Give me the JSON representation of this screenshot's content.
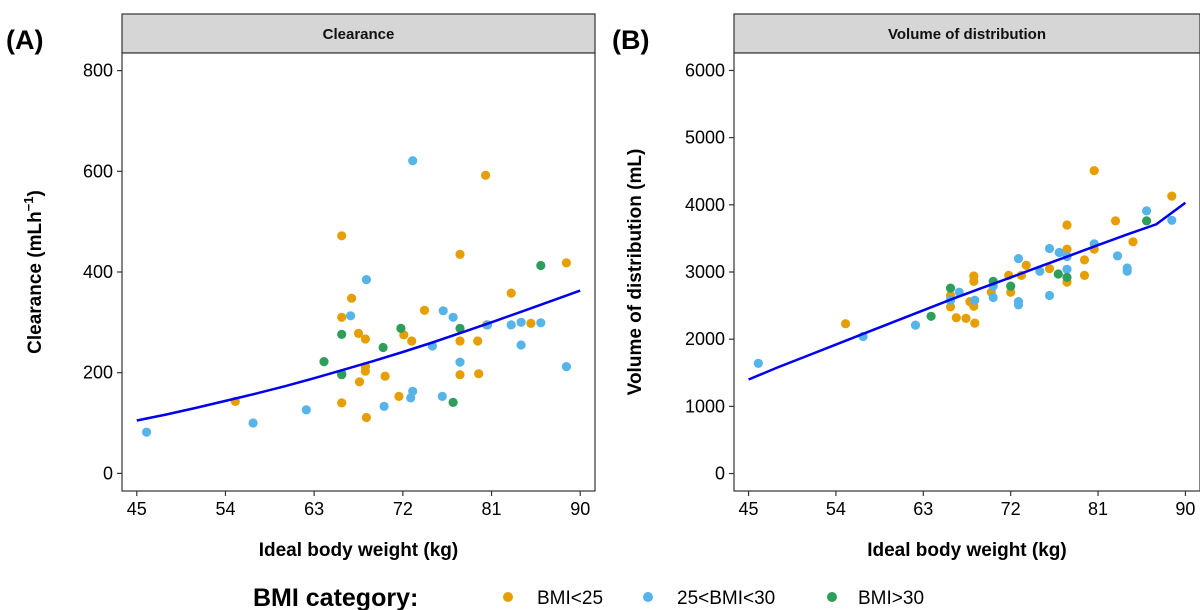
{
  "chart_data": [
    {
      "type": "scatter",
      "panel_tag": "(A)",
      "strip": "Clearance",
      "xlabel": "Ideal body weight (kg)",
      "ylabel": "Clearance (mLh",
      "ylabel_sup": "−1",
      "ylabel_end": ")",
      "xlim": [
        43.5,
        91.5
      ],
      "ylim": [
        -35,
        835
      ],
      "xticks": [
        45,
        54,
        63,
        72,
        81,
        90
      ],
      "xtick_labels": [
        "45",
        "54",
        "63",
        "72",
        "81",
        "90"
      ],
      "yticks": [
        0,
        200,
        400,
        600,
        800
      ],
      "ytick_labels": [
        "0",
        "200",
        "400",
        "600",
        "800"
      ],
      "grid": false,
      "series": [
        {
          "name": "BMI<25",
          "color": "#E69F00",
          "points": [
            [
              55.0,
              143
            ],
            [
              65.8,
              472
            ],
            [
              65.8,
              310
            ],
            [
              66.8,
              348
            ],
            [
              67.5,
              278
            ],
            [
              68.2,
              267
            ],
            [
              68.2,
              212
            ],
            [
              68.2,
              203
            ],
            [
              65.8,
              140
            ],
            [
              67.6,
              182
            ],
            [
              68.3,
              111
            ],
            [
              70.2,
              193
            ],
            [
              71.6,
              153
            ],
            [
              72.1,
              275
            ],
            [
              72.9,
              263
            ],
            [
              74.2,
              324
            ],
            [
              77.8,
              435
            ],
            [
              77.8,
              263
            ],
            [
              77.8,
              196
            ],
            [
              79.6,
              263
            ],
            [
              79.7,
              198
            ],
            [
              80.4,
              592
            ],
            [
              80.5,
              295
            ],
            [
              83.0,
              358
            ],
            [
              85.0,
              298
            ],
            [
              88.6,
              418
            ]
          ]
        },
        {
          "name": "25<BMI<30",
          "color": "#56B4E9",
          "points": [
            [
              46.0,
              82
            ],
            [
              56.8,
              100
            ],
            [
              62.2,
              126
            ],
            [
              66.7,
              313
            ],
            [
              68.3,
              385
            ],
            [
              70.1,
              133
            ],
            [
              72.8,
              150
            ],
            [
              73.0,
              163
            ],
            [
              73.0,
              621
            ],
            [
              75.0,
              253
            ],
            [
              76.0,
              153
            ],
            [
              76.1,
              323
            ],
            [
              77.1,
              310
            ],
            [
              77.8,
              221
            ],
            [
              80.6,
              295
            ],
            [
              83.0,
              295
            ],
            [
              84.0,
              300
            ],
            [
              84.0,
              255
            ],
            [
              86.0,
              299
            ],
            [
              88.6,
              212
            ]
          ]
        },
        {
          "name": "BMI>30",
          "color": "#2E9E5B",
          "points": [
            [
              64.0,
              222
            ],
            [
              65.8,
              276
            ],
            [
              65.8,
              196
            ],
            [
              65.8,
              198
            ],
            [
              70.0,
              250
            ],
            [
              71.8,
              288
            ],
            [
              77.1,
              141
            ],
            [
              77.8,
              288
            ],
            [
              86.0,
              413
            ]
          ]
        }
      ],
      "fit_line": {
        "color": "#0000EE",
        "x": [
          45,
          48,
          51,
          54,
          57,
          60,
          63,
          66,
          69,
          72,
          75,
          78,
          81,
          84,
          87,
          90
        ],
        "y": [
          105,
          117,
          130,
          144,
          158,
          173,
          189,
          206,
          223,
          241,
          260,
          280,
          300,
          321,
          342,
          363
        ]
      }
    },
    {
      "type": "scatter",
      "panel_tag": "(B)",
      "strip": "Volume of distribution",
      "xlabel": "Ideal body weight (kg)",
      "ylabel": "Volume of distribution (mL)",
      "xlim": [
        43.5,
        91.5
      ],
      "ylim": [
        -260,
        6260
      ],
      "xticks": [
        45,
        54,
        63,
        72,
        81,
        90
      ],
      "xtick_labels": [
        "45",
        "54",
        "63",
        "72",
        "81",
        "90"
      ],
      "yticks": [
        0,
        1000,
        2000,
        3000,
        4000,
        5000,
        6000
      ],
      "ytick_labels": [
        "0",
        "1000",
        "2000",
        "3000",
        "4000",
        "5000",
        "6000"
      ],
      "grid": false,
      "series": [
        {
          "name": "BMI<25",
          "color": "#E69F00",
          "points": [
            [
              55.0,
              2230
            ],
            [
              65.8,
              2650
            ],
            [
              65.8,
              2480
            ],
            [
              66.4,
              2320
            ],
            [
              67.4,
              2310
            ],
            [
              67.8,
              2560
            ],
            [
              68.2,
              2940
            ],
            [
              68.2,
              2860
            ],
            [
              68.2,
              2490
            ],
            [
              68.3,
              2240
            ],
            [
              70.0,
              2700
            ],
            [
              71.8,
              2950
            ],
            [
              72.0,
              2700
            ],
            [
              73.1,
              2950
            ],
            [
              73.6,
              3100
            ],
            [
              76.0,
              3050
            ],
            [
              77.8,
              3700
            ],
            [
              77.8,
              3340
            ],
            [
              77.8,
              3230
            ],
            [
              77.8,
              2850
            ],
            [
              79.6,
              2950
            ],
            [
              79.6,
              3180
            ],
            [
              80.6,
              4510
            ],
            [
              80.6,
              3340
            ],
            [
              82.8,
              3760
            ],
            [
              84.6,
              3450
            ],
            [
              88.6,
              4130
            ]
          ]
        },
        {
          "name": "25<BMI<30",
          "color": "#56B4E9",
          "points": [
            [
              46.0,
              1640
            ],
            [
              56.8,
              2040
            ],
            [
              62.2,
              2210
            ],
            [
              65.8,
              2580
            ],
            [
              66.7,
              2700
            ],
            [
              68.3,
              2580
            ],
            [
              70.2,
              2620
            ],
            [
              70.2,
              2790
            ],
            [
              72.8,
              3200
            ],
            [
              72.8,
              2560
            ],
            [
              72.8,
              2510
            ],
            [
              75.0,
              3010
            ],
            [
              76.0,
              3350
            ],
            [
              76.0,
              2650
            ],
            [
              77.0,
              3290
            ],
            [
              77.8,
              3230
            ],
            [
              77.8,
              3040
            ],
            [
              80.6,
              3420
            ],
            [
              83.0,
              3240
            ],
            [
              84.0,
              3060
            ],
            [
              84.0,
              3010
            ],
            [
              86.0,
              3910
            ],
            [
              88.6,
              3770
            ]
          ]
        },
        {
          "name": "BMI>30",
          "color": "#2E9E5B",
          "points": [
            [
              63.8,
              2340
            ],
            [
              65.8,
              2760
            ],
            [
              70.2,
              2860
            ],
            [
              72.0,
              2790
            ],
            [
              76.9,
              2970
            ],
            [
              77.8,
              2920
            ],
            [
              86.0,
              3760
            ]
          ]
        }
      ],
      "fit_line": {
        "color": "#0000EE",
        "x": [
          45,
          48,
          51,
          54,
          57,
          60,
          63,
          66,
          69,
          72,
          75,
          78,
          81,
          84,
          87,
          90
        ],
        "y": [
          1400,
          1580,
          1750,
          1920,
          2090,
          2260,
          2430,
          2600,
          2760,
          2920,
          3080,
          3240,
          3400,
          3560,
          3710,
          4030
        ]
      }
    }
  ],
  "legend": {
    "title": "BMI category:",
    "items": [
      {
        "label": "BMI<25",
        "color": "#E69F00"
      },
      {
        "label": "25<BMI<30",
        "color": "#56B4E9"
      },
      {
        "label": "BMI>30",
        "color": "#2E9E5B"
      }
    ]
  }
}
